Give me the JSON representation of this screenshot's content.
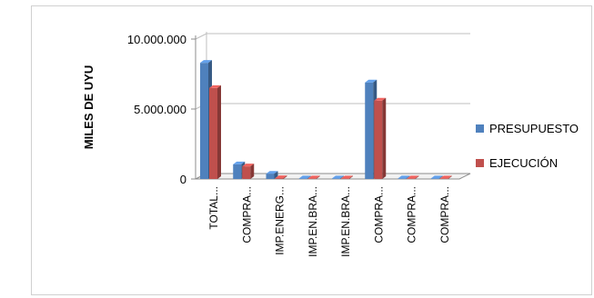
{
  "chart_data": {
    "type": "bar",
    "three_d": true,
    "ylabel": "MILES DE UYU",
    "xlabel": "",
    "title": "",
    "ylim": [
      0,
      10000000
    ],
    "ytick_labels": [
      "0",
      "5.000.000",
      "10.000.000"
    ],
    "yticks": [
      0,
      5000000,
      10000000
    ],
    "categories": [
      "TOTAL...",
      "COMPRA...",
      "IMP.ENERG...",
      "IMP.EN.BRA...",
      "IMP.EN.BRA...",
      "COMPRA...",
      "COMPRA...",
      "COMPRA..."
    ],
    "series": [
      {
        "name": "PRESUPUESTO",
        "color": "#4f81bd",
        "values": [
          8300000,
          1050000,
          370000,
          30000,
          30000,
          6900000,
          0,
          0
        ]
      },
      {
        "name": "EJECUCIÓN",
        "color": "#c0504d",
        "values": [
          6500000,
          900000,
          60000,
          10000,
          10000,
          5600000,
          20000,
          20000
        ]
      }
    ],
    "grid": true,
    "legend": "right"
  }
}
